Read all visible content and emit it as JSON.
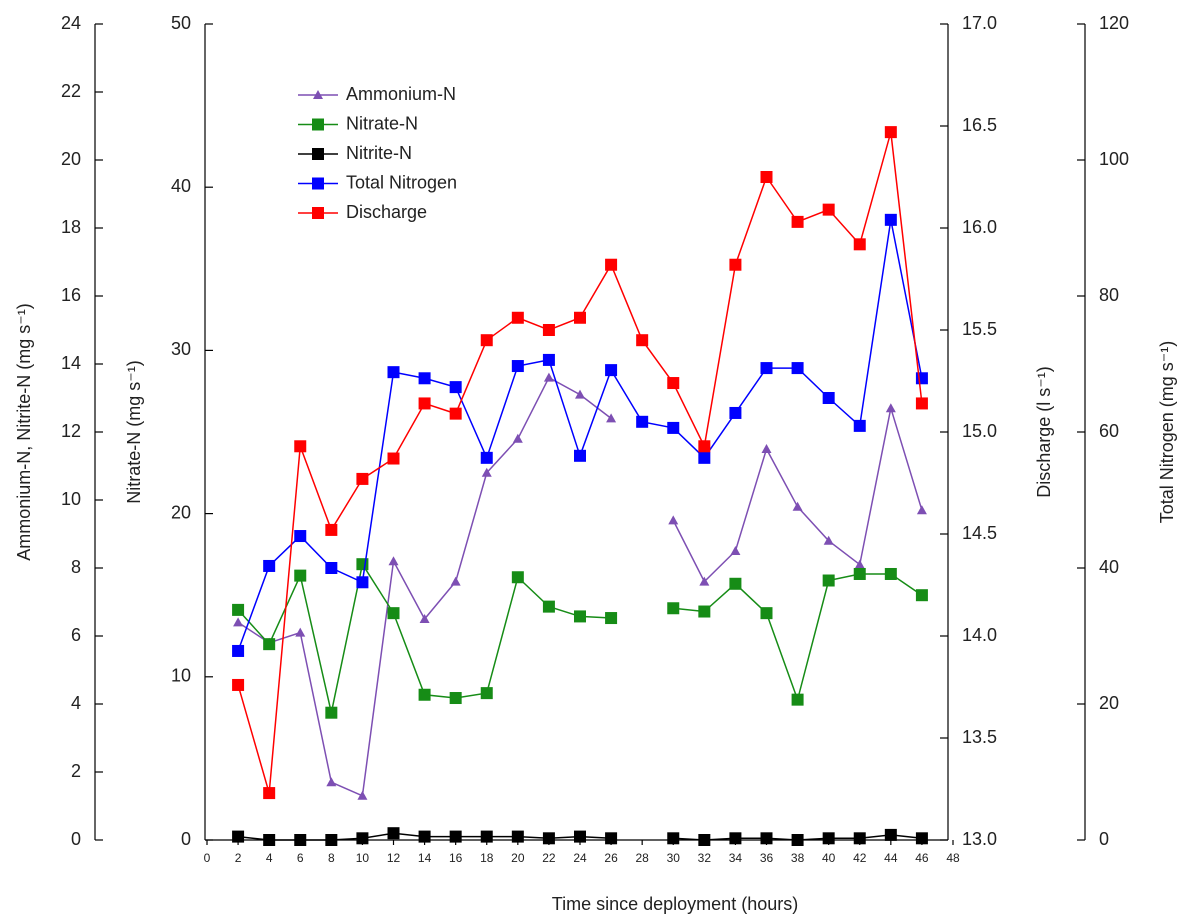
{
  "chart_data": {
    "type": "line",
    "xlabel": "Time since deployment (hours)",
    "x": [
      2,
      4,
      6,
      8,
      10,
      12,
      14,
      16,
      18,
      20,
      22,
      24,
      26,
      28,
      30,
      32,
      34,
      36,
      38,
      40,
      42,
      44,
      46
    ],
    "xlim": [
      0,
      48
    ],
    "xticks": [
      0,
      2,
      4,
      6,
      8,
      10,
      12,
      14,
      16,
      18,
      20,
      22,
      24,
      26,
      28,
      30,
      32,
      34,
      36,
      38,
      40,
      42,
      44,
      46,
      48
    ],
    "ylabel": "Nitrate-N (mg s⁻¹)",
    "ylim": [
      0,
      50
    ],
    "yticks": [
      0,
      10,
      20,
      30,
      40,
      50
    ],
    "y2label": "Ammonium-N, Nitrite-N (mg s⁻¹)",
    "y2lim": [
      0,
      24
    ],
    "y2ticks": [
      0,
      2,
      4,
      6,
      8,
      10,
      12,
      14,
      16,
      18,
      20,
      22,
      24
    ],
    "y3label": "Discharge (l s⁻¹)",
    "y3lim": [
      13,
      17
    ],
    "y3ticks": [
      {
        "value": 13,
        "label": "13.0"
      },
      13.5,
      {
        "value": 14,
        "label": "14.0"
      },
      14.5,
      {
        "value": 15,
        "label": "15.0"
      },
      15.5,
      {
        "value": 16,
        "label": "16.0"
      },
      16.5,
      {
        "value": 17,
        "label": "17.0"
      }
    ],
    "y4label": "Total Nitrogen (mg s⁻¹)",
    "y4lim": [
      0,
      120
    ],
    "y4ticks": [
      0,
      20,
      40,
      60,
      80,
      100,
      120
    ],
    "legend": "upper left",
    "series": [
      {
        "name": "Ammonium-N",
        "color": "#7d4fb3",
        "marker": "triangle",
        "axis": "y2",
        "values": [
          6.4,
          5.8,
          6.1,
          1.7,
          1.3,
          8.2,
          6.5,
          7.6,
          10.8,
          11.8,
          13.6,
          13.1,
          12.4,
          null,
          9.4,
          7.6,
          8.5,
          11.5,
          9.8,
          8.8,
          8.1,
          12.7,
          9.7
        ]
      },
      {
        "name": "Nitrate-N",
        "color": "#168c16",
        "marker": "square",
        "axis": "y",
        "values": [
          14.1,
          12.0,
          16.2,
          7.8,
          16.9,
          13.9,
          8.9,
          8.7,
          9.0,
          16.1,
          14.3,
          13.7,
          13.6,
          null,
          14.2,
          14.0,
          15.7,
          13.9,
          8.6,
          15.9,
          16.3,
          16.3,
          15.0
        ]
      },
      {
        "name": "Nitrite-N",
        "color": "#000000",
        "marker": "square",
        "axis": "y2",
        "values": [
          0.1,
          0.0,
          0.0,
          0.0,
          0.05,
          0.2,
          0.1,
          0.1,
          0.1,
          0.1,
          0.05,
          0.1,
          0.05,
          null,
          0.05,
          0.0,
          0.05,
          0.05,
          0.0,
          0.05,
          0.05,
          0.15,
          0.05
        ]
      },
      {
        "name": "Total Nitrogen",
        "color": "#0000ff",
        "marker": "square",
        "axis": "y4",
        "values": [
          27.8,
          40.3,
          44.7,
          40.0,
          37.9,
          68.8,
          67.9,
          66.6,
          56.2,
          69.7,
          70.6,
          56.5,
          69.1,
          61.5,
          60.6,
          56.2,
          62.8,
          69.4,
          69.4,
          65.0,
          60.9,
          91.2,
          67.9
        ]
      },
      {
        "name": "Discharge",
        "color": "#ff0000",
        "marker": "square",
        "axis": "y3",
        "values": [
          13.76,
          13.23,
          14.93,
          14.52,
          14.77,
          14.87,
          15.14,
          15.09,
          15.45,
          15.56,
          15.5,
          15.56,
          15.82,
          15.45,
          15.24,
          14.93,
          15.82,
          16.25,
          16.03,
          16.09,
          15.92,
          16.47,
          15.14
        ]
      }
    ]
  }
}
